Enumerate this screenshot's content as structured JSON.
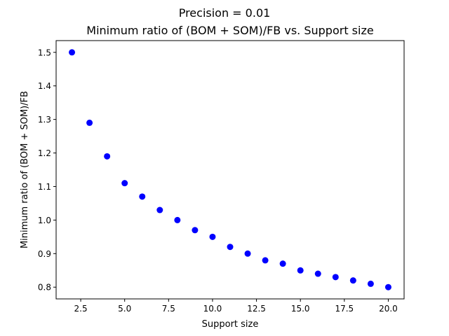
{
  "chart_data": {
    "type": "scatter",
    "suptitle": "Precision = 0.01",
    "title": "Minimum ratio of (BOM + SOM)/FB vs. Support size",
    "xlabel": "Support size",
    "ylabel": "Minimum ratio of (BOM + SOM)/FB",
    "xlim": [
      1.1,
      20.9
    ],
    "ylim": [
      0.765,
      1.535
    ],
    "xticks": [
      2.5,
      5.0,
      7.5,
      10.0,
      12.5,
      15.0,
      17.5,
      20.0
    ],
    "xtick_labels": [
      "2.5",
      "5.0",
      "7.5",
      "10.0",
      "12.5",
      "15.0",
      "17.5",
      "20.0"
    ],
    "yticks": [
      0.8,
      0.9,
      1.0,
      1.1,
      1.2,
      1.3,
      1.4,
      1.5
    ],
    "ytick_labels": [
      "0.8",
      "0.9",
      "1.0",
      "1.1",
      "1.2",
      "1.3",
      "1.4",
      "1.5"
    ],
    "grid": false,
    "marker_color": "#0000ff",
    "x": [
      2,
      3,
      4,
      5,
      6,
      7,
      8,
      9,
      10,
      11,
      12,
      13,
      14,
      15,
      16,
      17,
      18,
      19,
      20
    ],
    "y": [
      1.5,
      1.29,
      1.19,
      1.11,
      1.07,
      1.03,
      1.0,
      0.97,
      0.95,
      0.92,
      0.9,
      0.88,
      0.87,
      0.85,
      0.84,
      0.83,
      0.82,
      0.81,
      0.8
    ]
  }
}
